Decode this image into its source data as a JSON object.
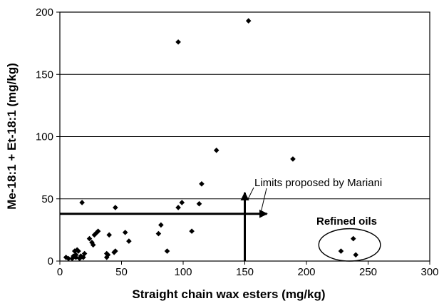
{
  "chart_data": {
    "type": "scatter",
    "xlabel": "Straight chain wax esters (mg/kg)",
    "ylabel": "Me-18:1 + Et-18:1 (mg/kg)",
    "xlim": [
      0,
      300
    ],
    "ylim": [
      0,
      200
    ],
    "xticks": [
      0,
      50,
      100,
      150,
      200,
      250,
      300
    ],
    "yticks": [
      0,
      50,
      100,
      150,
      200
    ],
    "grid": "horizontal",
    "marker": "diamond",
    "marker_color": "#000000",
    "points": [
      {
        "x": 5,
        "y": 3
      },
      {
        "x": 7,
        "y": 2
      },
      {
        "x": 10,
        "y": 2
      },
      {
        "x": 11,
        "y": 4
      },
      {
        "x": 12,
        "y": 8
      },
      {
        "x": 13,
        "y": 5
      },
      {
        "x": 13,
        "y": 3
      },
      {
        "x": 14,
        "y": 9
      },
      {
        "x": 15,
        "y": 8
      },
      {
        "x": 16,
        "y": 2
      },
      {
        "x": 17,
        "y": 4
      },
      {
        "x": 18,
        "y": 47
      },
      {
        "x": 19,
        "y": 3
      },
      {
        "x": 20,
        "y": 6
      },
      {
        "x": 24,
        "y": 18
      },
      {
        "x": 26,
        "y": 15
      },
      {
        "x": 27,
        "y": 13
      },
      {
        "x": 28,
        "y": 21
      },
      {
        "x": 30,
        "y": 23
      },
      {
        "x": 31,
        "y": 24
      },
      {
        "x": 38,
        "y": 3
      },
      {
        "x": 38,
        "y": 6
      },
      {
        "x": 39,
        "y": 5
      },
      {
        "x": 40,
        "y": 21
      },
      {
        "x": 44,
        "y": 7
      },
      {
        "x": 45,
        "y": 8
      },
      {
        "x": 45,
        "y": 43
      },
      {
        "x": 53,
        "y": 23
      },
      {
        "x": 56,
        "y": 16
      },
      {
        "x": 80,
        "y": 22
      },
      {
        "x": 82,
        "y": 29
      },
      {
        "x": 87,
        "y": 8
      },
      {
        "x": 96,
        "y": 176
      },
      {
        "x": 96,
        "y": 43
      },
      {
        "x": 99,
        "y": 47
      },
      {
        "x": 107,
        "y": 24
      },
      {
        "x": 113,
        "y": 46
      },
      {
        "x": 115,
        "y": 62
      },
      {
        "x": 127,
        "y": 89
      },
      {
        "x": 153,
        "y": 193
      },
      {
        "x": 189,
        "y": 82
      },
      {
        "x": 228,
        "y": 8
      },
      {
        "x": 238,
        "y": 18
      },
      {
        "x": 240,
        "y": 5
      }
    ],
    "limit_lines": [
      {
        "orientation": "horizontal",
        "y": 38,
        "x_from": 0,
        "x_to": 168
      },
      {
        "orientation": "vertical",
        "x": 150,
        "y_from": 0,
        "y_to": 55
      }
    ],
    "annotations": {
      "limits_label": "Limits proposed by Mariani",
      "refined_label": "Refined oils",
      "refined_ellipse": {
        "cx": 235,
        "cy": 13,
        "rx": 25,
        "ry": 13
      }
    }
  }
}
